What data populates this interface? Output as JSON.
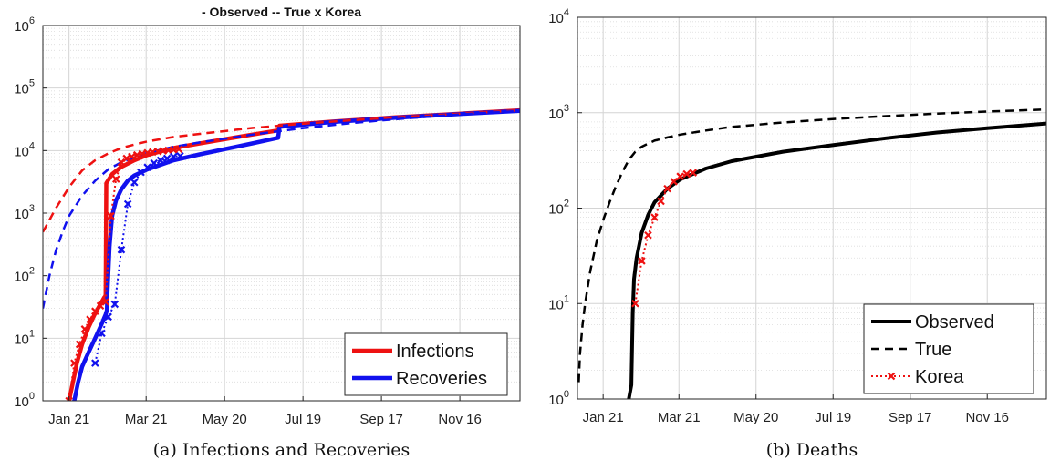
{
  "chart_data": [
    {
      "type": "line",
      "title": "- Observed  -- True  x Korea",
      "caption": "(a) Infections and Recoveries",
      "yscale": "log",
      "ylim": [
        1,
        1000000
      ],
      "y_ticks": [
        {
          "base": "10",
          "exp": "0"
        },
        {
          "base": "10",
          "exp": "1"
        },
        {
          "base": "10",
          "exp": "2"
        },
        {
          "base": "10",
          "exp": "3"
        },
        {
          "base": "10",
          "exp": "4"
        },
        {
          "base": "10",
          "exp": "5"
        },
        {
          "base": "10",
          "exp": "6"
        }
      ],
      "x_ticks": [
        "Jan 21",
        "Mar 21",
        "May 20",
        "Jul 19",
        "Sep 17",
        "Nov 16"
      ],
      "xlim_days": [
        -20,
        345
      ],
      "grid": true,
      "legend_position": "bottom-right",
      "legend": [
        "Infections",
        "Recoveries"
      ],
      "series": [
        {
          "name": "Infections",
          "style": "observed",
          "color": "#ee1111",
          "x": [
            0,
            3,
            6,
            10,
            15,
            20,
            25,
            27,
            28,
            28.5,
            33,
            40,
            50,
            60,
            80,
            100,
            140,
            160,
            161,
            200,
            250,
            300,
            345
          ],
          "y": [
            1,
            2,
            4,
            8,
            15,
            25,
            38,
            45,
            48,
            3000,
            4200,
            5500,
            7000,
            8500,
            11000,
            13000,
            18000,
            21000,
            25000,
            29000,
            34000,
            39000,
            44000
          ]
        },
        {
          "name": "Recoveries",
          "style": "observed",
          "color": "#1111ee",
          "x": [
            4,
            7,
            10,
            15,
            20,
            25,
            28,
            29,
            29.5,
            31,
            33,
            36,
            40,
            45,
            50,
            60,
            80,
            100,
            140,
            160,
            161,
            200,
            250,
            300,
            345
          ],
          "y": [
            1,
            2,
            3.5,
            6,
            10,
            17,
            24,
            28,
            60,
            300,
            900,
            1600,
            2400,
            3300,
            4000,
            5000,
            7000,
            8700,
            13000,
            16000,
            24000,
            28500,
            33500,
            38500,
            43000
          ]
        },
        {
          "name": "Infections",
          "style": "true",
          "color": "#ee1111",
          "x": [
            -20,
            -10,
            0,
            10,
            20,
            30,
            40,
            50,
            60,
            80,
            100,
            140,
            180,
            220,
            260,
            300,
            345
          ],
          "y": [
            500,
            1200,
            2600,
            4800,
            7000,
            9000,
            11000,
            12500,
            14000,
            16500,
            18500,
            23000,
            27000,
            31000,
            35000,
            39000,
            44000
          ]
        },
        {
          "name": "Recoveries",
          "style": "true",
          "color": "#1111ee",
          "x": [
            -20,
            -15,
            -10,
            -5,
            0,
            10,
            20,
            30,
            40,
            50,
            60,
            80,
            100,
            140,
            180,
            220,
            260,
            300,
            345
          ],
          "y": [
            30,
            100,
            250,
            500,
            900,
            1900,
            3300,
            5000,
            6500,
            7800,
            9200,
            11500,
            13500,
            18000,
            23000,
            28000,
            33000,
            38000,
            43000
          ]
        },
        {
          "name": "Korea infections",
          "style": "korea",
          "color": "#ee1111",
          "x": [
            0,
            4,
            8,
            12,
            16,
            20,
            24,
            28,
            32,
            36,
            40,
            44,
            48,
            52,
            56,
            60,
            64,
            68,
            72,
            76,
            80,
            84
          ],
          "y": [
            1,
            4,
            8,
            14,
            20,
            27,
            33,
            38,
            900,
            3500,
            6500,
            7500,
            8000,
            8500,
            8900,
            9200,
            9500,
            9700,
            9900,
            10100,
            10300,
            10500
          ]
        },
        {
          "name": "Korea recoveries",
          "style": "korea",
          "color": "#1111ee",
          "x": [
            20,
            25,
            30,
            35,
            40,
            45,
            50,
            55,
            60,
            65,
            70,
            75,
            80,
            85
          ],
          "y": [
            4,
            12,
            22,
            35,
            260,
            1400,
            3100,
            4500,
            5400,
            6300,
            7000,
            7500,
            8000,
            8200
          ]
        }
      ]
    },
    {
      "type": "line",
      "title": "",
      "caption": "(b) Deaths",
      "yscale": "log",
      "ylim": [
        1,
        10000
      ],
      "y_ticks": [
        {
          "base": "10",
          "exp": "0"
        },
        {
          "base": "10",
          "exp": "1"
        },
        {
          "base": "10",
          "exp": "2"
        },
        {
          "base": "10",
          "exp": "3"
        },
        {
          "base": "10",
          "exp": "4"
        }
      ],
      "x_ticks": [
        "Jan 21",
        "Mar 21",
        "May 20",
        "Jul 19",
        "Sep 17",
        "Nov 16"
      ],
      "xlim_days": [
        -20,
        345
      ],
      "grid": true,
      "legend_position": "bottom-right",
      "legend": [
        "Observed",
        "True",
        "Korea"
      ],
      "series": [
        {
          "name": "Observed",
          "style": "solid-black",
          "color": "#000000",
          "x": [
            20,
            22,
            23,
            24,
            26,
            30,
            35,
            40,
            50,
            60,
            80,
            100,
            140,
            180,
            220,
            260,
            300,
            345
          ],
          "y": [
            1,
            1.4,
            8,
            18,
            30,
            55,
            85,
            115,
            160,
            200,
            260,
            310,
            390,
            460,
            540,
            620,
            690,
            770
          ]
        },
        {
          "name": "True",
          "style": "dashed-black",
          "color": "#000000",
          "x": [
            -19,
            -18,
            -16,
            -14,
            -12,
            -10,
            -5,
            0,
            5,
            10,
            15,
            20,
            25,
            30,
            40,
            50,
            60,
            80,
            100,
            140,
            180,
            220,
            260,
            300,
            345
          ],
          "y": [
            1.5,
            3,
            6,
            10,
            15,
            22,
            45,
            75,
            115,
            170,
            240,
            320,
            390,
            440,
            510,
            550,
            590,
            650,
            710,
            790,
            860,
            920,
            980,
            1030,
            1080
          ]
        },
        {
          "name": "Korea",
          "style": "korea",
          "color": "#ee1111",
          "x": [
            25,
            30,
            35,
            40,
            45,
            50,
            55,
            60,
            65,
            70
          ],
          "y": [
            10,
            28,
            52,
            80,
            118,
            160,
            190,
            215,
            228,
            235
          ]
        }
      ]
    }
  ]
}
